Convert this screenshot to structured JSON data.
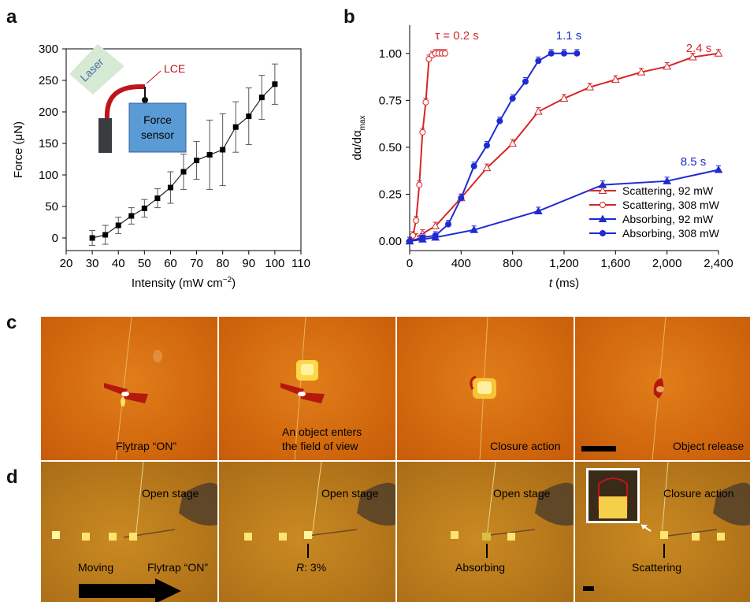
{
  "panels": {
    "a": "a",
    "b": "b",
    "c": "c",
    "d": "d"
  },
  "chart_data": [
    {
      "type": "line",
      "panel": "a",
      "title": "",
      "xlabel": "Intensity (mW cm",
      "xlabel_sup": "−2",
      "xlabel_end": ")",
      "ylabel": "Force (μN)",
      "xlim": [
        20,
        110
      ],
      "ylim": [
        -20,
        300
      ],
      "xticks": [
        20,
        30,
        40,
        50,
        60,
        70,
        80,
        90,
        100,
        110
      ],
      "yticks": [
        0,
        50,
        100,
        150,
        200,
        250,
        300
      ],
      "x": [
        30,
        35,
        40,
        45,
        50,
        55,
        60,
        65,
        70,
        75,
        80,
        85,
        90,
        95,
        100
      ],
      "values": [
        0,
        5,
        20,
        35,
        47,
        63,
        80,
        105,
        123,
        132,
        140,
        176,
        193,
        223,
        244
      ],
      "error": [
        12,
        15,
        13,
        13,
        14,
        15,
        25,
        28,
        30,
        55,
        57,
        40,
        45,
        35,
        32
      ],
      "inset": {
        "laser_label": "Laser",
        "lce_label": "LCE",
        "sensor_label_1": "Force",
        "sensor_label_2": "sensor",
        "laser_color": "#d6ead3",
        "sensor_color": "#5b9bd5",
        "lce_color": "#c0141b"
      }
    },
    {
      "type": "line",
      "panel": "b",
      "title": "",
      "xlabel": "t",
      "xlabel_end": " (ms)",
      "ylabel": "dα/dα",
      "ylabel_sub": "max",
      "xlim": [
        0,
        2400
      ],
      "ylim": [
        -0.05,
        1.15
      ],
      "xticks": [
        0,
        400,
        800,
        1200,
        1600,
        2000,
        2400
      ],
      "xtick_labels": [
        "0",
        "400",
        "800",
        "1,200",
        "1,600",
        "2,000",
        "2,400"
      ],
      "yticks": [
        0,
        0.25,
        0.5,
        0.75,
        1.0
      ],
      "ytick_labels": [
        "0.00",
        "0.25",
        "0.50",
        "0.75",
        "1.00"
      ],
      "series": [
        {
          "name": "Scattering, 92 mW",
          "color": "#d62728",
          "marker": "triangle-open",
          "x": [
            0,
            50,
            100,
            200,
            400,
            600,
            800,
            1000,
            1200,
            1400,
            1600,
            1800,
            2000,
            2200,
            2400
          ],
          "values": [
            0,
            0.02,
            0.04,
            0.08,
            0.23,
            0.39,
            0.52,
            0.69,
            0.76,
            0.82,
            0.86,
            0.9,
            0.93,
            0.98,
            1.0
          ]
        },
        {
          "name": "Scattering, 308 mW",
          "color": "#d62728",
          "marker": "circle-open",
          "x": [
            0,
            25,
            50,
            75,
            100,
            125,
            150,
            175,
            200,
            225,
            250,
            275
          ],
          "values": [
            0,
            0.03,
            0.11,
            0.3,
            0.58,
            0.74,
            0.97,
            0.99,
            1.0,
            1.0,
            1.0,
            1.0
          ]
        },
        {
          "name": "Absorbing, 92 mW",
          "color": "#1f2bd1",
          "marker": "triangle-filled",
          "x": [
            0,
            100,
            200,
            500,
            1000,
            1500,
            2000,
            2400
          ],
          "values": [
            0,
            0.01,
            0.02,
            0.06,
            0.16,
            0.3,
            0.32,
            0.38
          ]
        },
        {
          "name": "Absorbing, 308 mW",
          "color": "#1f2bd1",
          "marker": "circle-filled",
          "x": [
            0,
            100,
            200,
            300,
            400,
            500,
            600,
            700,
            800,
            900,
            1000,
            1100,
            1200,
            1300
          ],
          "values": [
            0,
            0.02,
            0.03,
            0.09,
            0.23,
            0.4,
            0.51,
            0.64,
            0.76,
            0.85,
            0.96,
            1.0,
            1.0,
            1.0
          ]
        }
      ],
      "annotations": [
        {
          "text": "τ = 0.2 s",
          "color": "#d62728"
        },
        {
          "text": "1.1 s",
          "color": "#1f2bd1"
        },
        {
          "text": "2.4 s",
          "color": "#d62728"
        },
        {
          "text": "8.5 s",
          "color": "#1f2bd1"
        }
      ],
      "legend_placement": "bottom-right"
    }
  ],
  "row_c": {
    "captions": [
      "Flytrap “ON”",
      "An object enters",
      "the field of view",
      "Closure action",
      "Object release"
    ]
  },
  "row_d": {
    "frame1": {
      "top": "Open stage",
      "bottom_left": "Moving",
      "bottom_right": "Flytrap “ON”"
    },
    "frame2": {
      "top": "Open stage",
      "bottom_italic": "R",
      "bottom_rest": ": 3%"
    },
    "frame3": {
      "top": "Open stage",
      "bottom": "Absorbing"
    },
    "frame4": {
      "top": "Closure action",
      "bottom": "Scattering"
    }
  }
}
